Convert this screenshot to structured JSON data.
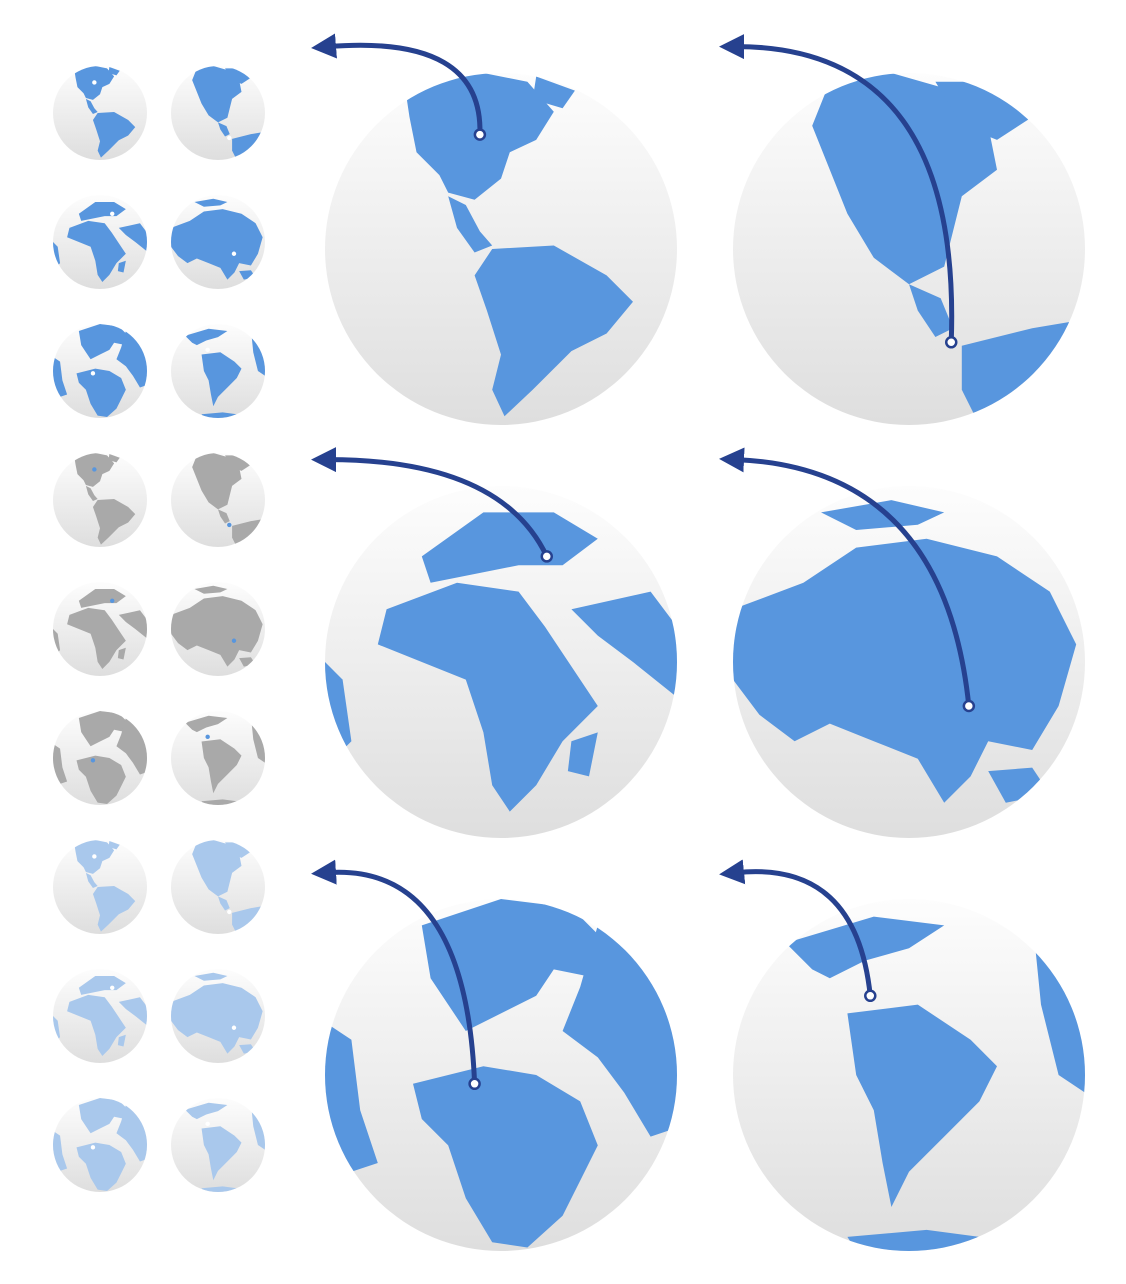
{
  "colors": {
    "land_blue": "#5896de",
    "land_gray": "#a9a9a9",
    "land_light": "#a9c8ec",
    "arrow": "#26418f",
    "globe_top": "#fdfdfd",
    "globe_bottom": "#dedede"
  },
  "small_globe_grid": {
    "rows": [
      {
        "style": "blue",
        "globes": [
          {
            "view": "americas"
          },
          {
            "view": "north-america"
          }
        ]
      },
      {
        "style": "blue",
        "globes": [
          {
            "view": "africa-europe"
          },
          {
            "view": "asia"
          }
        ]
      },
      {
        "style": "blue",
        "globes": [
          {
            "view": "europe-atlantic"
          },
          {
            "view": "south-america"
          }
        ]
      },
      {
        "style": "gray",
        "globes": [
          {
            "view": "americas"
          },
          {
            "view": "north-america"
          }
        ]
      },
      {
        "style": "gray",
        "globes": [
          {
            "view": "africa-europe"
          },
          {
            "view": "asia"
          }
        ]
      },
      {
        "style": "gray",
        "globes": [
          {
            "view": "europe-atlantic"
          },
          {
            "view": "south-america"
          }
        ]
      },
      {
        "style": "light",
        "globes": [
          {
            "view": "americas"
          },
          {
            "view": "north-america"
          }
        ]
      },
      {
        "style": "light",
        "globes": [
          {
            "view": "africa-europe"
          },
          {
            "view": "asia"
          }
        ]
      },
      {
        "style": "light",
        "globes": [
          {
            "view": "europe-atlantic"
          },
          {
            "view": "south-america"
          }
        ]
      }
    ]
  },
  "large_globes": [
    {
      "view": "americas",
      "icon": "globe-with-arrow-icon"
    },
    {
      "view": "north-america",
      "icon": "globe-with-arrow-icon"
    },
    {
      "view": "africa-europe",
      "icon": "globe-with-arrow-icon"
    },
    {
      "view": "asia",
      "icon": "globe-with-arrow-icon"
    },
    {
      "view": "europe-atlantic",
      "icon": "globe-with-arrow-icon"
    },
    {
      "view": "south-america",
      "icon": "globe-with-arrow-icon"
    }
  ]
}
